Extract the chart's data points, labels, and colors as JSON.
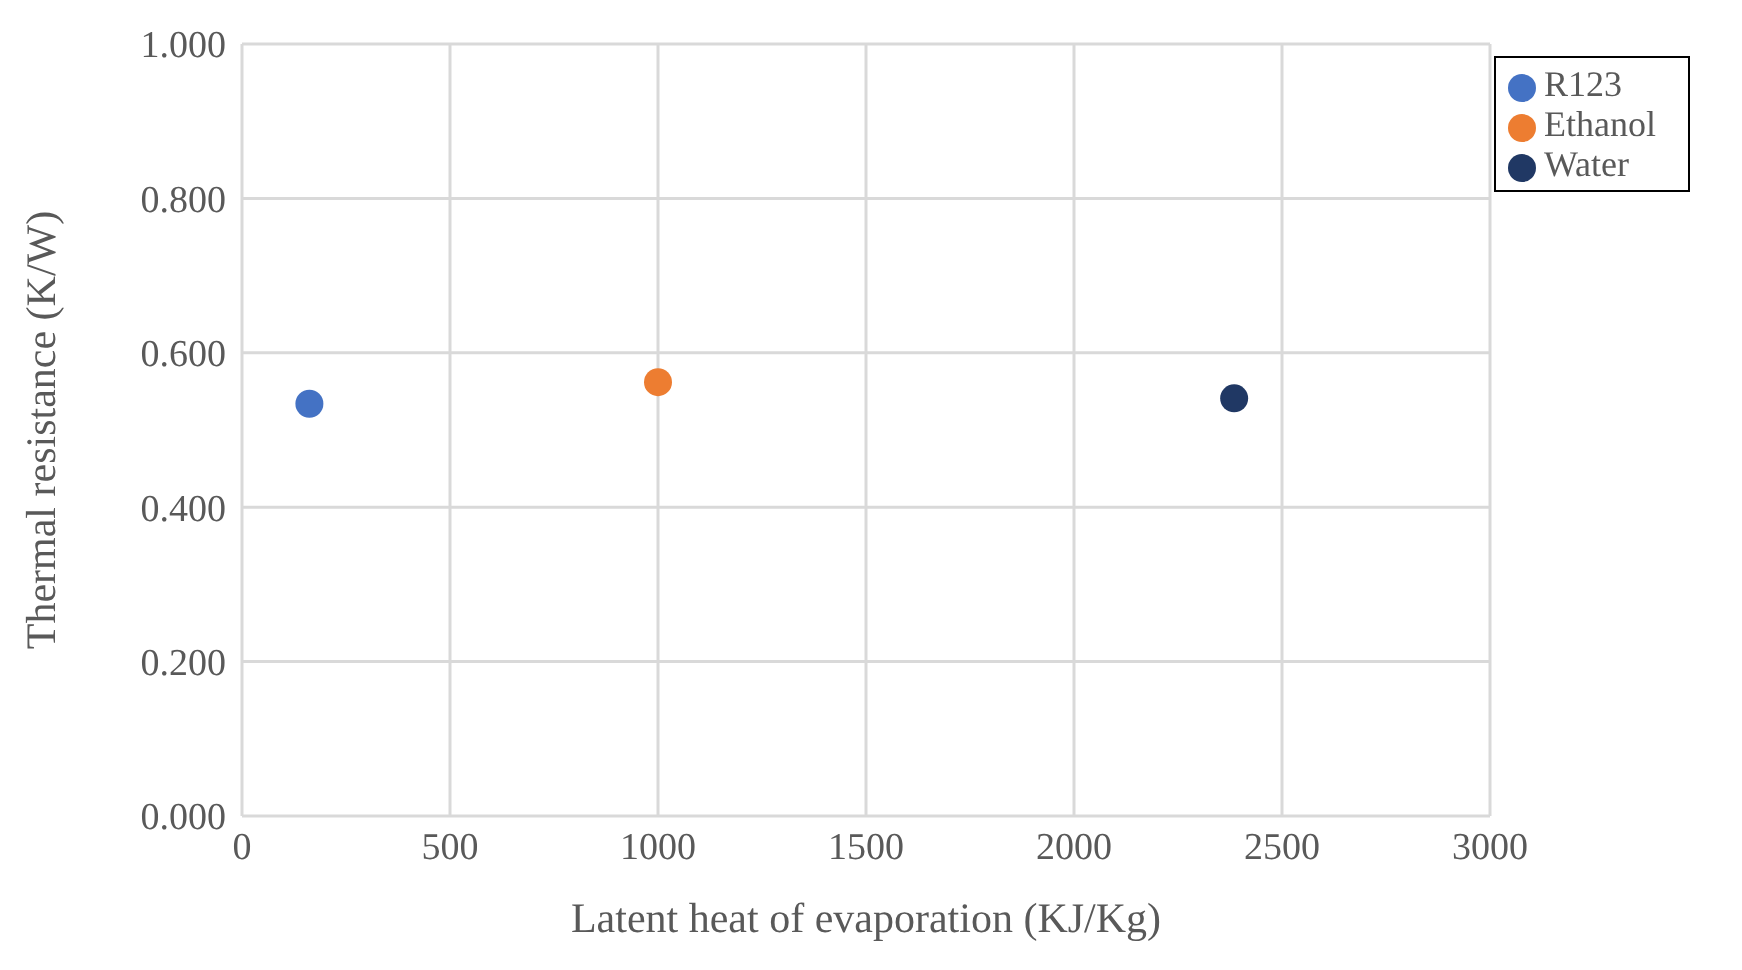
{
  "chart_data": {
    "type": "scatter",
    "xlabel": "Latent heat of evaporation (KJ/Kg)",
    "ylabel": "Thermal resistance (K/W)",
    "series": [
      {
        "name": "R123",
        "color": "#4472c4",
        "x": [
          162
        ],
        "values": [
          0.534
        ]
      },
      {
        "name": "Ethanol",
        "color": "#ed7d31",
        "x": [
          1000
        ],
        "values": [
          0.562
        ]
      },
      {
        "name": "Water",
        "color": "#203864",
        "x": [
          2385
        ],
        "values": [
          0.541
        ]
      }
    ],
    "xlim": [
      0,
      3000
    ],
    "xticks": [
      0,
      500,
      1000,
      1500,
      2000,
      2500,
      3000
    ],
    "ylim": [
      0,
      1
    ],
    "yticks": [
      {
        "value": 0,
        "label": "0.000"
      },
      {
        "value": 0.2,
        "label": "0.200"
      },
      {
        "value": 0.4,
        "label": "0.400"
      },
      {
        "value": 0.6,
        "label": "0.600"
      },
      {
        "value": 0.8,
        "label": "0.800"
      },
      {
        "value": 1,
        "label": "1.000"
      }
    ],
    "grid": true,
    "legend": "top right",
    "marker": "circle"
  }
}
